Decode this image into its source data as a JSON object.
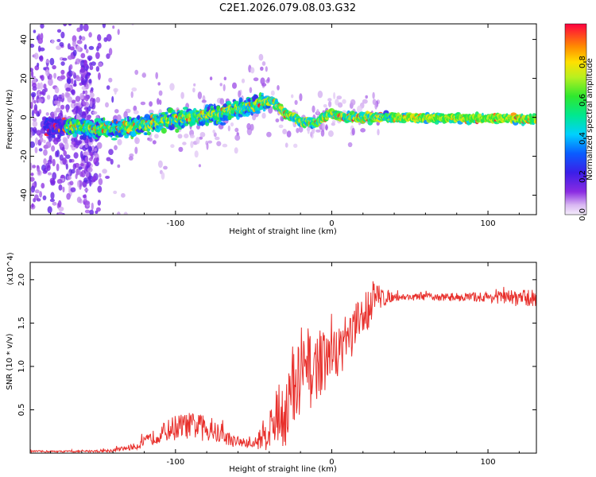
{
  "title": "C2E1.2026.079.08.03.G32",
  "chart_data": [
    {
      "type": "heatmap",
      "xlabel": "Height of straight line (km)",
      "ylabel": "Frequency (Hz)",
      "xlim": [
        -193,
        131
      ],
      "ylim": [
        -50,
        48
      ],
      "xticks": [
        -100,
        0,
        100
      ],
      "yticks": [
        -40,
        -20,
        0,
        20,
        40
      ],
      "ridge_center_hz": [
        {
          "x": -170,
          "y": -5
        },
        {
          "x": -140,
          "y": -6
        },
        {
          "x": -120,
          "y": -4
        },
        {
          "x": -100,
          "y": -1
        },
        {
          "x": -80,
          "y": 1
        },
        {
          "x": -60,
          "y": 4
        },
        {
          "x": -45,
          "y": 7
        },
        {
          "x": -38,
          "y": 9
        },
        {
          "x": -30,
          "y": 2
        },
        {
          "x": -20,
          "y": -2
        },
        {
          "x": -10,
          "y": -3
        },
        {
          "x": -2,
          "y": 2
        },
        {
          "x": 10,
          "y": 0
        },
        {
          "x": 40,
          "y": 0
        },
        {
          "x": 131,
          "y": -1
        }
      ],
      "colorbar": {
        "label": "Normalized spectral amplitude",
        "range": [
          0,
          1
        ],
        "ticks": [
          0.0,
          0.2,
          0.4,
          0.6,
          0.8
        ],
        "tick_labels": [
          "0.0",
          "0.2",
          "0.4",
          "0.6",
          "0.8"
        ],
        "colormap": "rainbow"
      }
    },
    {
      "type": "line",
      "xlabel": "Height of straight line (km)",
      "ylabel": "SNR (10 * v/v)",
      "y_multiplier": "(x10^4)",
      "xlim": [
        -193,
        131
      ],
      "ylim": [
        0,
        2.2
      ],
      "xticks": [
        -100,
        0,
        100
      ],
      "yticks": [
        0.5,
        1.0,
        1.5,
        2.0
      ],
      "ytick_labels": [
        "0.5",
        "1.0",
        "1.5",
        "2.0"
      ],
      "series": [
        {
          "name": "SNR",
          "color": "#e8302c",
          "x": [
            -193,
            -160,
            -140,
            -125,
            -110,
            -100,
            -90,
            -80,
            -70,
            -60,
            -50,
            -40,
            -35,
            -30,
            -25,
            -20,
            -15,
            -10,
            0,
            10,
            20,
            25,
            30,
            40,
            60,
            80,
            100,
            120,
            131
          ],
          "y": [
            0.02,
            0.02,
            0.03,
            0.08,
            0.22,
            0.3,
            0.32,
            0.28,
            0.2,
            0.12,
            0.1,
            0.28,
            0.4,
            0.5,
            0.65,
            0.85,
            0.9,
            1.0,
            1.1,
            1.3,
            1.55,
            1.75,
            1.8,
            1.8,
            1.8,
            1.8,
            1.8,
            1.79,
            1.78
          ],
          "noise": [
            0.01,
            0.01,
            0.02,
            0.04,
            0.1,
            0.15,
            0.15,
            0.15,
            0.1,
            0.06,
            0.05,
            0.25,
            0.35,
            0.45,
            0.5,
            0.5,
            0.45,
            0.4,
            0.3,
            0.3,
            0.3,
            0.25,
            0.15,
            0.04,
            0.04,
            0.05,
            0.06,
            0.1,
            0.1
          ]
        }
      ]
    }
  ]
}
